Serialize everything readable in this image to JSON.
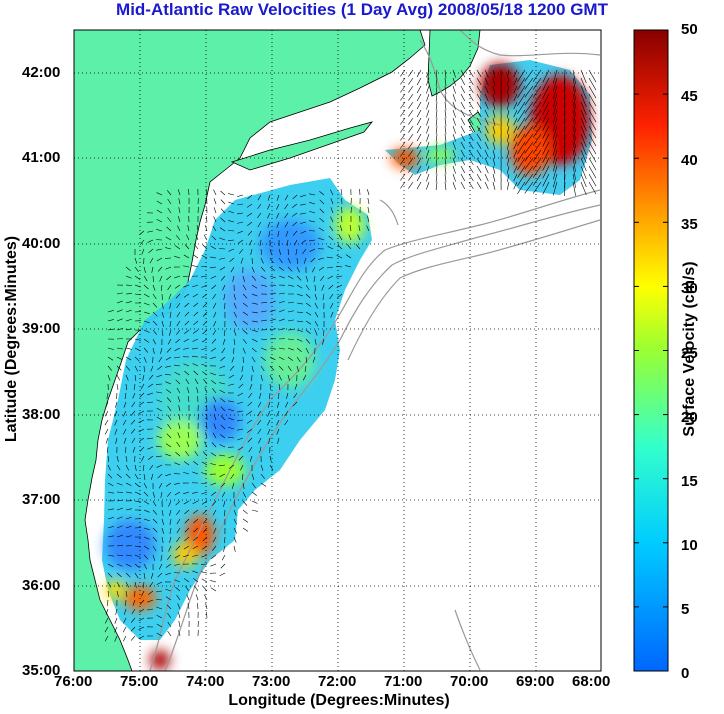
{
  "title": "Mid-Atlantic Raw Velocities (1 Day Avg) 2008/05/18 1200 GMT",
  "xlabel": "Longitude (Degrees:Minutes)",
  "ylabel": "Latitude (Degrees:Minutes)",
  "colorbar": {
    "label": "Surface Velocity (cm/s)",
    "min": 0,
    "max": 50,
    "ticks": [
      "0",
      "5",
      "10",
      "15",
      "20",
      "25",
      "30",
      "35",
      "40",
      "45",
      "50"
    ],
    "colormap": "jet"
  },
  "axes": {
    "x_ticks": [
      "76:00",
      "75:00",
      "74:00",
      "73:00",
      "72:00",
      "71:00",
      "70:00",
      "69:00",
      "68:00"
    ],
    "y_ticks": [
      "42:00",
      "41:00",
      "40:00",
      "39:00",
      "38:00",
      "37:00",
      "36:00",
      "35:00"
    ],
    "lon_range": [
      -76,
      -68
    ],
    "lat_range": [
      35,
      42.5
    ],
    "grid": "dotted"
  },
  "colors": {
    "land": "#5cf0a8",
    "ocean": "#ffffff",
    "title": "#1a1acc",
    "bathymetry": "#9a9a9a",
    "vectors": "#000000"
  }
}
